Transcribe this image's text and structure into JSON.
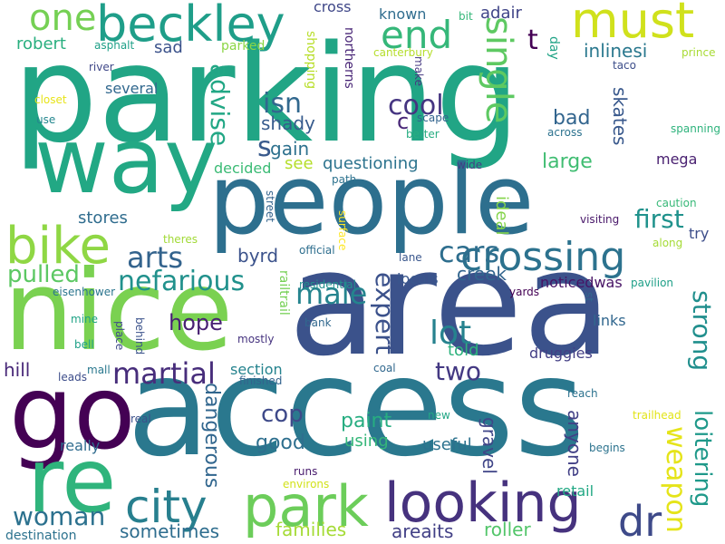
{
  "words": [
    {
      "text": "parking",
      "color": "#21a585"
    },
    {
      "text": "area",
      "color": "#3b528b"
    },
    {
      "text": "access",
      "color": "#2a788e"
    },
    {
      "text": "people",
      "color": "#2d6f8e"
    },
    {
      "text": "nice",
      "color": "#7ad151"
    },
    {
      "text": "way",
      "color": "#22a884"
    },
    {
      "text": "go",
      "color": "#440154"
    },
    {
      "text": "re",
      "color": "#2fb47c"
    },
    {
      "text": "looking",
      "color": "#46327e"
    },
    {
      "text": "city",
      "color": "#277f8e"
    },
    {
      "text": "park",
      "color": "#6ccd5a"
    },
    {
      "text": "must",
      "color": "#d0e11c"
    },
    {
      "text": "beckley",
      "color": "#1f9e89"
    },
    {
      "text": "bike",
      "color": "#8fd744"
    },
    {
      "text": "crossing",
      "color": "#2c728e"
    },
    {
      "text": "dr",
      "color": "#3e4a89"
    },
    {
      "text": "one",
      "color": "#75d054"
    },
    {
      "text": "end",
      "color": "#35b779"
    },
    {
      "text": "single",
      "color": "#5ec962"
    },
    {
      "text": "arts",
      "color": "#33638d"
    },
    {
      "text": "nefarious",
      "color": "#21918c"
    },
    {
      "text": "male",
      "color": "#25848e"
    },
    {
      "text": "cars",
      "color": "#2e6e8e"
    },
    {
      "text": "martial",
      "color": "#472d7b"
    },
    {
      "text": "weapon",
      "color": "#e5e419"
    },
    {
      "text": "loitering",
      "color": "#1f998a"
    },
    {
      "text": "strong",
      "color": "#218f8d"
    },
    {
      "text": "woman",
      "color": "#2c718e"
    },
    {
      "text": "lot",
      "color": "#26828e"
    },
    {
      "text": "expert",
      "color": "#3b518b"
    },
    {
      "text": "advise",
      "color": "#22a785"
    },
    {
      "text": "isn",
      "color": "#31688e"
    },
    {
      "text": "cool",
      "color": "#453581"
    },
    {
      "text": "t",
      "color": "#440154"
    },
    {
      "text": "pulled",
      "color": "#5cc863"
    },
    {
      "text": "first",
      "color": "#20928c"
    },
    {
      "text": "cop",
      "color": "#3e4989"
    },
    {
      "text": "two",
      "color": "#443983"
    },
    {
      "text": "dangerous",
      "color": "#31668e"
    },
    {
      "text": "hope",
      "color": "#482173"
    },
    {
      "text": "s",
      "color": "#38598c"
    },
    {
      "text": "c",
      "color": "#482677"
    },
    {
      "text": "anyone",
      "color": "#424086"
    },
    {
      "text": "skates",
      "color": "#38588c"
    },
    {
      "text": "bad",
      "color": "#32658e"
    },
    {
      "text": "large",
      "color": "#40bd72"
    },
    {
      "text": "gravel",
      "color": "#404688"
    },
    {
      "text": "paint",
      "color": "#27ad81"
    },
    {
      "text": "good",
      "color": "#2e6f8e"
    },
    {
      "text": "gain",
      "color": "#2d718e"
    },
    {
      "text": "ideal",
      "color": "#84d44b"
    },
    {
      "text": "sometimes",
      "color": "#2e6d8e"
    },
    {
      "text": "families",
      "color": "#a5db36"
    },
    {
      "text": "roller",
      "color": "#52c569"
    },
    {
      "text": "areaits",
      "color": "#424086"
    },
    {
      "text": "hill",
      "color": "#482878"
    },
    {
      "text": "robert",
      "color": "#29af7f"
    },
    {
      "text": "sad",
      "color": "#3b528b"
    },
    {
      "text": "several",
      "color": "#31688e"
    },
    {
      "text": "shady",
      "color": "#375b8d"
    },
    {
      "text": "see",
      "color": "#b5de2b"
    },
    {
      "text": "questioning",
      "color": "#2c738e"
    },
    {
      "text": "stores",
      "color": "#2f6c8e"
    },
    {
      "text": "byrd",
      "color": "#3b528b"
    },
    {
      "text": "told",
      "color": "#2db27d"
    },
    {
      "text": "using",
      "color": "#35b779"
    },
    {
      "text": "useful",
      "color": "#2c728e"
    },
    {
      "text": "creek",
      "color": "#32658e"
    },
    {
      "text": "locals",
      "color": "#39568c"
    },
    {
      "text": "druggies",
      "color": "#433e85"
    },
    {
      "text": "noticedwas",
      "color": "#471365"
    },
    {
      "text": "links",
      "color": "#31678e"
    },
    {
      "text": "known",
      "color": "#2f6c8e"
    },
    {
      "text": "adair",
      "color": "#404588"
    },
    {
      "text": "cross",
      "color": "#3f4788"
    },
    {
      "text": "inlinesi",
      "color": "#2a788e"
    },
    {
      "text": "mega",
      "color": "#481f70"
    },
    {
      "text": "try",
      "color": "#3d4e8a"
    },
    {
      "text": "section",
      "color": "#25838e"
    },
    {
      "text": "really",
      "color": "#2f6b8e"
    },
    {
      "text": "decided",
      "color": "#3bbb75"
    },
    {
      "text": "retail",
      "color": "#22a884"
    },
    {
      "text": "northerns",
      "color": "#482576"
    },
    {
      "text": "shopping",
      "color": "#b8de29"
    },
    {
      "text": "parked",
      "color": "#8bd646"
    },
    {
      "text": "asphalt",
      "color": "#1fa088"
    },
    {
      "text": "river",
      "color": "#3f4788"
    },
    {
      "text": "closet",
      "color": "#e7e419"
    },
    {
      "text": "use",
      "color": "#24878e"
    },
    {
      "text": "canterbury",
      "color": "#b5de2b"
    },
    {
      "text": "make",
      "color": "#453781"
    },
    {
      "text": "bit",
      "color": "#35b779"
    },
    {
      "text": "day",
      "color": "#20a386"
    },
    {
      "text": "scape",
      "color": "#32648e"
    },
    {
      "text": "better",
      "color": "#27ad81"
    },
    {
      "text": "across",
      "color": "#2c728e"
    },
    {
      "text": "wide",
      "color": "#433e85"
    },
    {
      "text": "path",
      "color": "#2c728e"
    },
    {
      "text": "street",
      "color": "#33638d"
    },
    {
      "text": "surface",
      "color": "#fde725"
    },
    {
      "text": "theres",
      "color": "#a2da37"
    },
    {
      "text": "official",
      "color": "#2e6e8e"
    },
    {
      "text": "lane",
      "color": "#39568c"
    },
    {
      "text": "railtrail",
      "color": "#75d054"
    },
    {
      "text": "residential",
      "color": "#21918c"
    },
    {
      "text": "eisenhower",
      "color": "#2b758e"
    },
    {
      "text": "mine",
      "color": "#20a386"
    },
    {
      "text": "bell",
      "color": "#1fa188"
    },
    {
      "text": "behind",
      "color": "#3b528b"
    },
    {
      "text": "place",
      "color": "#3e4a89"
    },
    {
      "text": "mall",
      "color": "#2a788e"
    },
    {
      "text": "leads",
      "color": "#3d4d8a"
    },
    {
      "text": "mostly",
      "color": "#46337f"
    },
    {
      "text": "finished",
      "color": "#33638d"
    },
    {
      "text": "bank",
      "color": "#31688e"
    },
    {
      "text": "coal",
      "color": "#31688e"
    },
    {
      "text": "real",
      "color": "#3b518b"
    },
    {
      "text": "runs",
      "color": "#481b6d"
    },
    {
      "text": "environs",
      "color": "#d2e21b"
    },
    {
      "text": "destination",
      "color": "#2c728e"
    },
    {
      "text": "new",
      "color": "#22a785"
    },
    {
      "text": "begins",
      "color": "#2c738e"
    },
    {
      "text": "reach",
      "color": "#2c728e"
    },
    {
      "text": "trailhead",
      "color": "#e2e418"
    },
    {
      "text": "taco",
      "color": "#3d4e8a"
    },
    {
      "text": "prince",
      "color": "#a8db34"
    },
    {
      "text": "spanning",
      "color": "#2eb37c"
    },
    {
      "text": "caution",
      "color": "#37b878"
    },
    {
      "text": "visiting",
      "color": "#481769"
    },
    {
      "text": "along",
      "color": "#a5db36"
    },
    {
      "text": "pavilion",
      "color": "#1fa088"
    },
    {
      "text": "yards",
      "color": "#440154"
    },
    {
      "text": "st",
      "color": "#31688e"
    }
  ]
}
